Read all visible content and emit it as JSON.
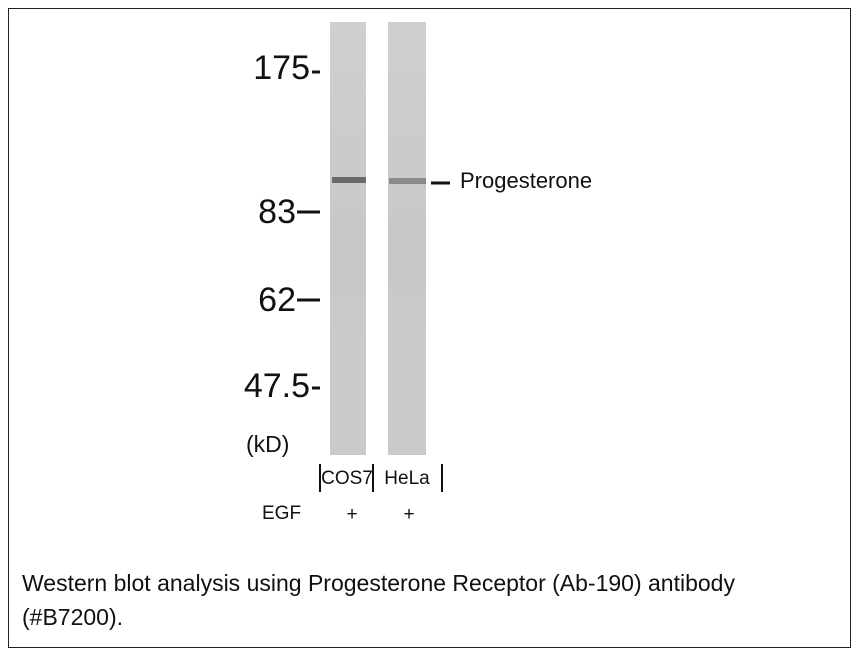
{
  "figure": {
    "markers": [
      "175",
      "83",
      "62",
      "47.5"
    ],
    "unit": "(kD)",
    "band_label": "Progesterone",
    "lanes": [
      "COS7",
      "HeLa"
    ],
    "treatment": "EGF",
    "treatment_signs": [
      "+",
      "+"
    ]
  },
  "caption": "Western blot analysis using Progesterone Receptor (Ab-190) antibody (#B7200)."
}
